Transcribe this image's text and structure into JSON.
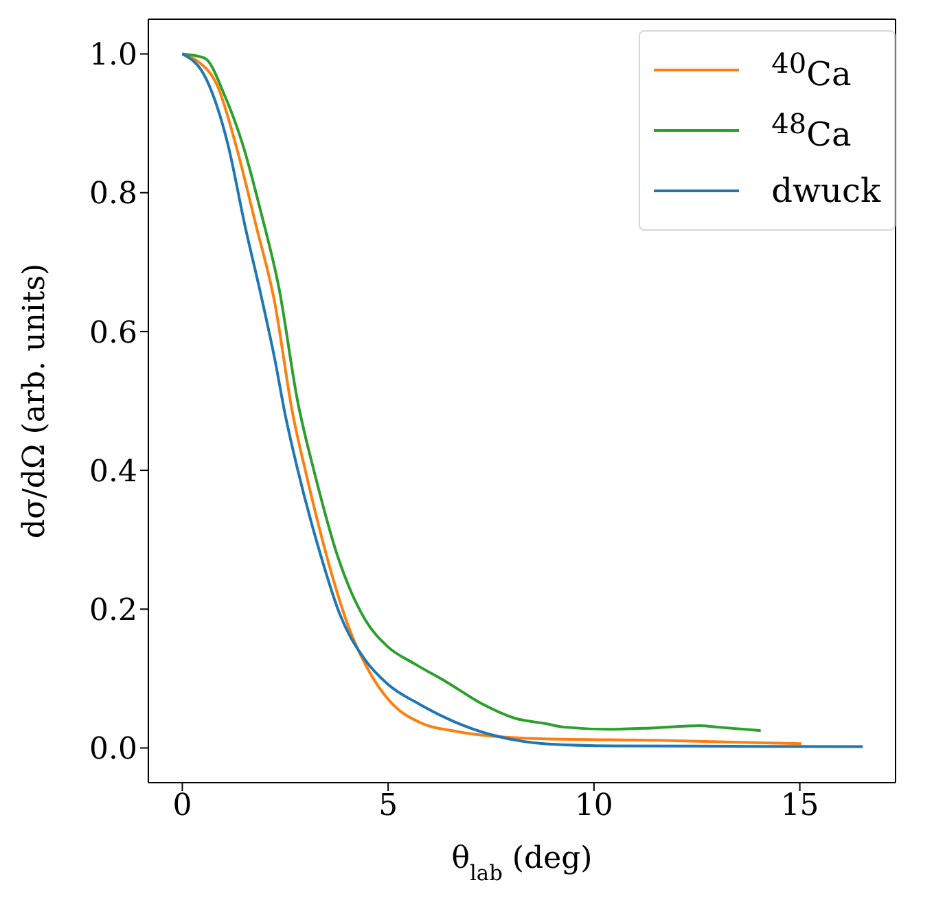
{
  "chart_data": {
    "type": "line",
    "xlabel": "θ$_{lab}$ (deg)",
    "ylabel": "dσ/dΩ (arb. units)",
    "xlim": [
      -0.825,
      17.325
    ],
    "ylim": [
      -0.05,
      1.05
    ],
    "xticks": [
      0,
      5,
      10,
      15
    ],
    "yticks": [
      {
        "value": 0,
        "label": "0.0"
      },
      0.2,
      0.4,
      0.6,
      0.8,
      {
        "value": 1,
        "label": "1.0"
      }
    ],
    "legend": "top right",
    "marker": "none",
    "line_style": "solid",
    "series": [
      {
        "name": "$^{40}$Ca",
        "color": "#ff7f0e",
        "x": [
          0,
          0.36,
          0.86,
          1.3,
          1.79,
          2.24,
          2.68,
          3.02,
          3.57,
          4.01,
          4.56,
          5.11,
          5.76,
          6.64,
          7.73,
          8.83,
          11.47,
          15.04
        ],
        "values": [
          1.0,
          0.99,
          0.953,
          0.869,
          0.753,
          0.643,
          0.482,
          0.392,
          0.263,
          0.179,
          0.108,
          0.063,
          0.037,
          0.024,
          0.016,
          0.013,
          0.011,
          0.006
        ]
      },
      {
        "name": "$^{48}$Ca",
        "color": "#2ca02c",
        "x": [
          0,
          0.54,
          1.03,
          1.47,
          1.91,
          2.35,
          2.8,
          3.23,
          3.78,
          4.44,
          4.99,
          5.65,
          6.42,
          7.3,
          8.07,
          8.83,
          9.27,
          10.37,
          11.47,
          12.57,
          13.0,
          14.05
        ],
        "values": [
          1.0,
          0.994,
          0.94,
          0.869,
          0.772,
          0.662,
          0.5,
          0.392,
          0.275,
          0.185,
          0.146,
          0.121,
          0.095,
          0.063,
          0.043,
          0.035,
          0.03,
          0.027,
          0.029,
          0.032,
          0.03,
          0.025
        ]
      },
      {
        "name": "dwuck",
        "color": "#1f77b4",
        "x": [
          0,
          0.58,
          1.11,
          1.52,
          1.92,
          2.25,
          2.5,
          2.79,
          3.34,
          3.83,
          4.44,
          4.99,
          5.76,
          6.64,
          7.51,
          8.83,
          10.5,
          16.53
        ],
        "values": [
          1.0,
          0.964,
          0.869,
          0.753,
          0.65,
          0.559,
          0.48,
          0.404,
          0.282,
          0.192,
          0.127,
          0.092,
          0.063,
          0.037,
          0.019,
          0.006,
          0.003,
          0.002
        ]
      }
    ]
  }
}
